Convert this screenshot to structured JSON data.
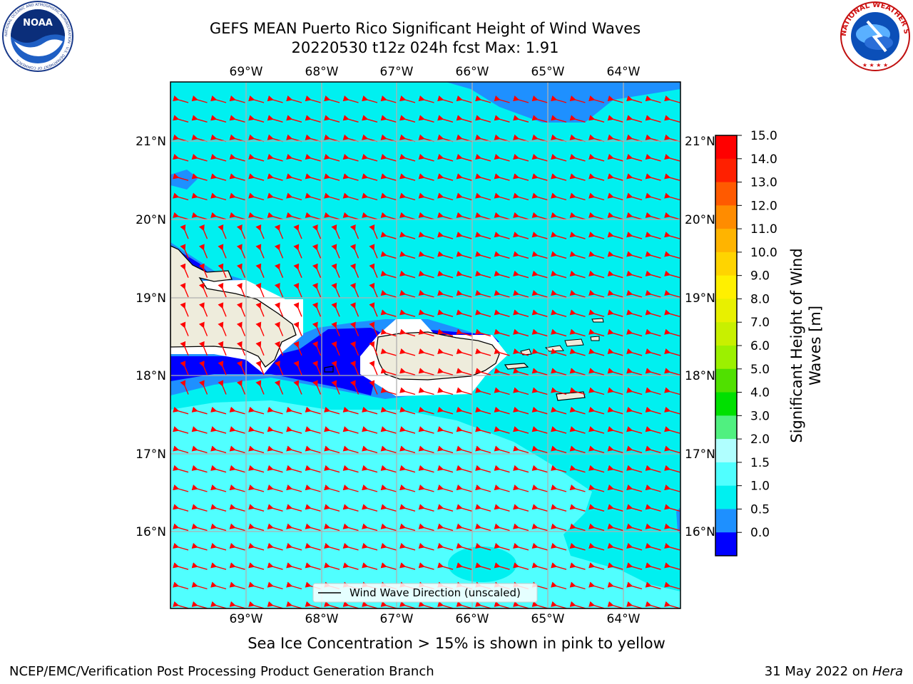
{
  "title_line1": "GEFS MEAN Puerto Rico Significant Height of Wind Waves",
  "title_line2": "20220530 t12z 024h fcst   Max: 1.91",
  "lon_labels": [
    "69°W",
    "68°W",
    "67°W",
    "66°W",
    "65°W",
    "64°W"
  ],
  "lat_labels": [
    "21°N",
    "20°N",
    "19°N",
    "18°N",
    "17°N",
    "16°N"
  ],
  "legend_label": "Wind Wave Direction (unscaled)",
  "colorbar": {
    "label_line1": "Significant Height of Wind",
    "label_line2": "Waves [m]",
    "ticks": [
      "15.0",
      "14.0",
      "13.0",
      "12.0",
      "11.0",
      "10.0",
      "9.0",
      "8.0",
      "7.0",
      "6.0",
      "5.0",
      "4.0",
      "3.0",
      "2.0",
      "1.5",
      "1.0",
      "0.5",
      "0.0"
    ],
    "colors": [
      "#ff0000",
      "#ff2000",
      "#ff5a00",
      "#ff8c00",
      "#ffb400",
      "#ffd400",
      "#fff000",
      "#e8f000",
      "#c8f000",
      "#9cf000",
      "#50e000",
      "#00e000",
      "#50f080",
      "#b0ffff",
      "#50ffff",
      "#00f0f0",
      "#1e90ff",
      "#0000ff"
    ]
  },
  "sea_ice_note": "Sea Ice Concentration > 15% is shown in pink to yellow",
  "footer_left": "NCEP/EMC/Verification Post Processing Product Generation Branch",
  "footer_right_date": "31 May 2022 on ",
  "footer_right_host": "Hera",
  "logo_left": "NOAA",
  "logo_left_ring": "NATIONAL OCEANIC AND ATMOSPHERIC ADMINISTRATION · U.S. DEPARTMENT OF COMMERCE",
  "logo_right_ring": "NATIONAL WEATHER SERVICE"
}
